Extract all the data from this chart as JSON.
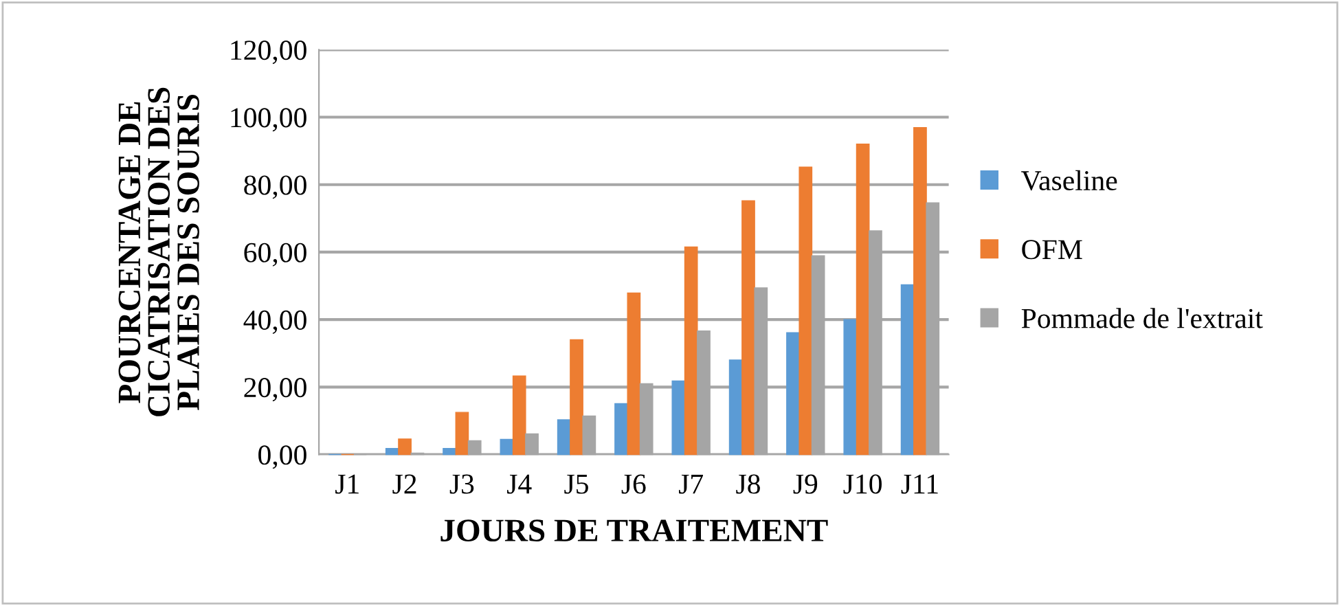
{
  "chart_data": {
    "type": "bar",
    "xlabel": "JOURS DE TRAITEMENT",
    "ylabel": "POURCENTAGE DE\nCICATRISATION DES\nPLAIES DES SOURIS",
    "categories": [
      "J1",
      "J2",
      "J3",
      "J4",
      "J5",
      "J6",
      "J7",
      "J8",
      "J9",
      "J10",
      "J11"
    ],
    "series": [
      {
        "name": "Vaseline",
        "color": "#5b9bd5",
        "values": [
          0,
          1.8,
          1.8,
          4.5,
          10.3,
          15.1,
          21.8,
          28.0,
          36.1,
          40.0,
          50.3
        ]
      },
      {
        "name": "OFM",
        "color": "#ed7d31",
        "values": [
          0,
          4.6,
          12.5,
          23.3,
          34.0,
          47.9,
          61.5,
          75.2,
          85.2,
          92.0,
          96.9
        ]
      },
      {
        "name": "Pommade de l'extrait",
        "color": "#a5a5a5",
        "values": [
          0,
          0.4,
          4.1,
          6.1,
          11.4,
          21.0,
          36.6,
          49.4,
          58.9,
          66.3,
          74.6
        ]
      }
    ],
    "ylim": [
      0,
      120
    ],
    "yticks": [
      {
        "value": 0,
        "label": "0,00"
      },
      {
        "value": 20,
        "label": "20,00"
      },
      {
        "value": 40,
        "label": "40,00"
      },
      {
        "value": 60,
        "label": "60,00"
      },
      {
        "value": 80,
        "label": "80,00"
      },
      {
        "value": 100,
        "label": "100,00"
      },
      {
        "value": 120,
        "label": "120,00"
      }
    ],
    "grid": "y",
    "legend": "right"
  }
}
